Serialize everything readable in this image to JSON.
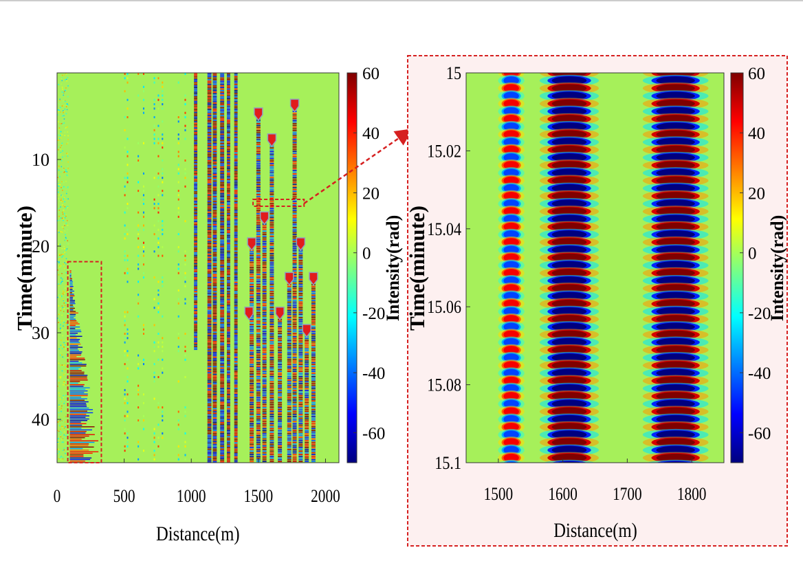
{
  "colors": {
    "background_field": "#a6f05a",
    "inset_background": "#fdf0f0",
    "dashed_box": "#d62020",
    "marker": "#e11c1c"
  },
  "colorbar_stops": [
    "#00007f",
    "#0000ff",
    "#007fff",
    "#00ffff",
    "#7fff7f",
    "#ffff00",
    "#ff7f00",
    "#ff0000",
    "#7f0000"
  ],
  "chart_data": [
    {
      "type": "heatmap",
      "title": "",
      "xlabel": "Distance(m)",
      "ylabel": "Time(minute)",
      "colorbar_label": "Intensity(rad)",
      "xlim": [
        0,
        2100
      ],
      "ylim": [
        45,
        0
      ],
      "clim": [
        -70,
        60
      ],
      "x_ticks": [
        "0",
        "500",
        "1000",
        "1500",
        "2000"
      ],
      "x_tick_values": [
        0,
        500,
        1000,
        1500,
        2000
      ],
      "y_ticks": [
        "10",
        "20",
        "30",
        "40"
      ],
      "y_tick_values": [
        10,
        20,
        30,
        40
      ],
      "colorbar_ticks": [
        "60",
        "40",
        "20",
        "0",
        "-20",
        "-40",
        "-60"
      ],
      "colorbar_tick_values": [
        60,
        40,
        20,
        0,
        -20,
        -40,
        -60
      ],
      "strong_bands_m": [
        [
          1020,
          1045,
          0,
          32
        ],
        [
          1120,
          1150,
          0,
          45
        ],
        [
          1160,
          1190,
          0,
          45
        ],
        [
          1215,
          1245,
          0,
          45
        ],
        [
          1265,
          1290,
          0,
          45
        ],
        [
          1320,
          1345,
          0,
          45
        ]
      ],
      "event_tracks_m": [
        [
          1450,
          20,
          45
        ],
        [
          1500,
          5,
          45
        ],
        [
          1545,
          17,
          45
        ],
        [
          1600,
          8,
          45
        ],
        [
          1660,
          28,
          45
        ],
        [
          1730,
          24,
          45
        ],
        [
          1770,
          4,
          45
        ],
        [
          1815,
          20,
          45
        ],
        [
          1860,
          30,
          45
        ],
        [
          1910,
          24,
          45
        ]
      ],
      "weak_lines_m": [
        500,
        520,
        600,
        640,
        720,
        750,
        780,
        900,
        950
      ],
      "markers": [
        [
          1500,
          5
        ],
        [
          1600,
          8
        ],
        [
          1770,
          4
        ],
        [
          1545,
          17
        ],
        [
          1450,
          20
        ],
        [
          1815,
          20
        ],
        [
          1730,
          24
        ],
        [
          1910,
          24
        ],
        [
          1430,
          28
        ],
        [
          1660,
          28
        ],
        [
          1860,
          30
        ]
      ],
      "zoom_box": {
        "x": [
          1460,
          1840
        ],
        "y": [
          14.6,
          15.4
        ]
      },
      "noise_box": {
        "x": [
          80,
          330
        ],
        "y": [
          21.8,
          45
        ]
      }
    },
    {
      "type": "heatmap",
      "title": "",
      "xlabel": "Distance(m)",
      "ylabel": "Time(minute)",
      "colorbar_label": "Intensity(rad)",
      "xlim": [
        1450,
        1850
      ],
      "ylim": [
        15.1,
        15
      ],
      "clim": [
        -70,
        60
      ],
      "x_ticks": [
        "1500",
        "1600",
        "1700",
        "1800"
      ],
      "x_tick_values": [
        1500,
        1600,
        1700,
        1800
      ],
      "y_ticks": [
        "15",
        "15.02",
        "15.04",
        "15.06",
        "15.08",
        "15.1"
      ],
      "y_tick_values": [
        15,
        15.02,
        15.04,
        15.06,
        15.08,
        15.1
      ],
      "colorbar_ticks": [
        "60",
        "40",
        "20",
        "0",
        "-20",
        "-40",
        "-60"
      ],
      "colorbar_tick_values": [
        60,
        40,
        20,
        0,
        -20,
        -40,
        -60
      ],
      "bands": [
        {
          "center_m": 1520,
          "half_width_m": 12,
          "cycle_min": 0.00395,
          "amplitude_rad": 45
        },
        {
          "center_m": 1610,
          "half_width_m": 27,
          "cycle_min": 0.00395,
          "amplitude_rad": 70
        },
        {
          "center_m": 1775,
          "half_width_m": 30,
          "cycle_min": 0.00395,
          "amplitude_rad": 70
        }
      ]
    }
  ]
}
